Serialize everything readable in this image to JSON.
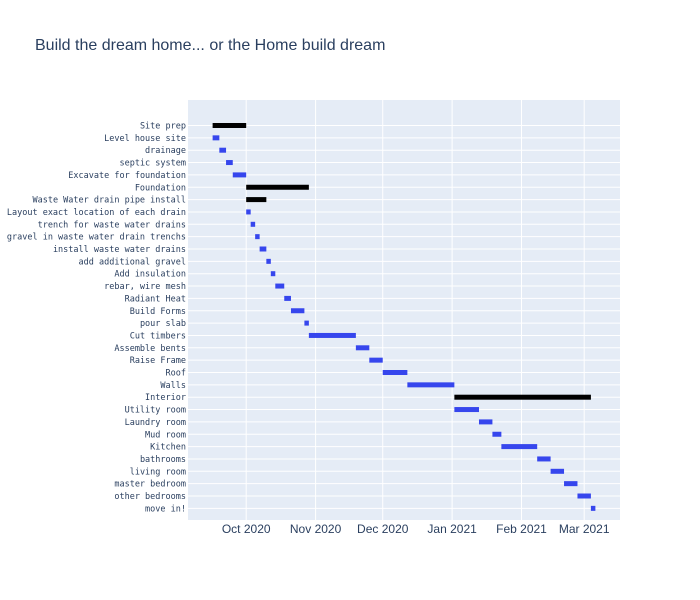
{
  "chart_data": {
    "type": "gantt",
    "title": "Build the dream home... or the Home build dream",
    "x_ticks": [
      "Oct 2020",
      "Nov 2020",
      "Dec 2020",
      "Jan 2021",
      "Feb 2021",
      "Mar 2021"
    ],
    "x_tick_dates": [
      "2020-10-01",
      "2020-11-01",
      "2020-12-01",
      "2021-01-01",
      "2021-02-01",
      "2021-03-01"
    ],
    "x_range": [
      "2020-09-05",
      "2021-03-17"
    ],
    "grid": true,
    "colors": {
      "background": "#e5ecf6",
      "task": "#3646ed",
      "summary": "#000000",
      "grid": "#ffffff",
      "text": "#2a3f5f"
    },
    "tasks": [
      {
        "name": "Site prep",
        "start": "2020-09-16",
        "end": "2020-10-01",
        "summary": true
      },
      {
        "name": "Level house site",
        "start": "2020-09-16",
        "end": "2020-09-19",
        "summary": false
      },
      {
        "name": "drainage",
        "start": "2020-09-19",
        "end": "2020-09-22",
        "summary": false
      },
      {
        "name": "septic system",
        "start": "2020-09-22",
        "end": "2020-09-25",
        "summary": false
      },
      {
        "name": "Excavate for foundation",
        "start": "2020-09-25",
        "end": "2020-10-01",
        "summary": false
      },
      {
        "name": "Foundation",
        "start": "2020-10-01",
        "end": "2020-10-29",
        "summary": true
      },
      {
        "name": "Waste Water drain pipe install",
        "start": "2020-10-01",
        "end": "2020-10-10",
        "summary": true
      },
      {
        "name": "Layout exact location of each drain",
        "start": "2020-10-01",
        "end": "2020-10-03",
        "summary": false
      },
      {
        "name": "trench for waste water drains",
        "start": "2020-10-03",
        "end": "2020-10-05",
        "summary": false
      },
      {
        "name": "gravel in waste water drain trenchs",
        "start": "2020-10-05",
        "end": "2020-10-07",
        "summary": false
      },
      {
        "name": "install waste water drains",
        "start": "2020-10-07",
        "end": "2020-10-10",
        "summary": false
      },
      {
        "name": "add additional gravel",
        "start": "2020-10-10",
        "end": "2020-10-12",
        "summary": false
      },
      {
        "name": "Add insulation",
        "start": "2020-10-12",
        "end": "2020-10-14",
        "summary": false
      },
      {
        "name": "rebar, wire mesh",
        "start": "2020-10-14",
        "end": "2020-10-18",
        "summary": false
      },
      {
        "name": "Radiant Heat",
        "start": "2020-10-18",
        "end": "2020-10-21",
        "summary": false
      },
      {
        "name": "Build Forms",
        "start": "2020-10-21",
        "end": "2020-10-27",
        "summary": false
      },
      {
        "name": "pour slab",
        "start": "2020-10-27",
        "end": "2020-10-29",
        "summary": false
      },
      {
        "name": "Cut timbers",
        "start": "2020-10-29",
        "end": "2020-11-19",
        "summary": false
      },
      {
        "name": "Assemble bents",
        "start": "2020-11-19",
        "end": "2020-11-25",
        "summary": false
      },
      {
        "name": "Raise Frame",
        "start": "2020-11-25",
        "end": "2020-12-01",
        "summary": false
      },
      {
        "name": "Roof",
        "start": "2020-12-01",
        "end": "2020-12-12",
        "summary": false
      },
      {
        "name": "Walls",
        "start": "2020-12-12",
        "end": "2021-01-02",
        "summary": false
      },
      {
        "name": "Interior",
        "start": "2021-01-02",
        "end": "2021-03-04",
        "summary": true
      },
      {
        "name": "Utility room",
        "start": "2021-01-02",
        "end": "2021-01-13",
        "summary": false
      },
      {
        "name": "Laundry room",
        "start": "2021-01-13",
        "end": "2021-01-19",
        "summary": false
      },
      {
        "name": "Mud room",
        "start": "2021-01-19",
        "end": "2021-01-23",
        "summary": false
      },
      {
        "name": "Kitchen",
        "start": "2021-01-23",
        "end": "2021-02-08",
        "summary": false
      },
      {
        "name": "bathrooms",
        "start": "2021-02-08",
        "end": "2021-02-14",
        "summary": false
      },
      {
        "name": "living room",
        "start": "2021-02-14",
        "end": "2021-02-20",
        "summary": false
      },
      {
        "name": "master bedroom",
        "start": "2021-02-20",
        "end": "2021-02-26",
        "summary": false
      },
      {
        "name": "other bedrooms",
        "start": "2021-02-26",
        "end": "2021-03-04",
        "summary": false
      },
      {
        "name": "move in!",
        "start": "2021-03-04",
        "end": "2021-03-06",
        "summary": false
      }
    ]
  }
}
